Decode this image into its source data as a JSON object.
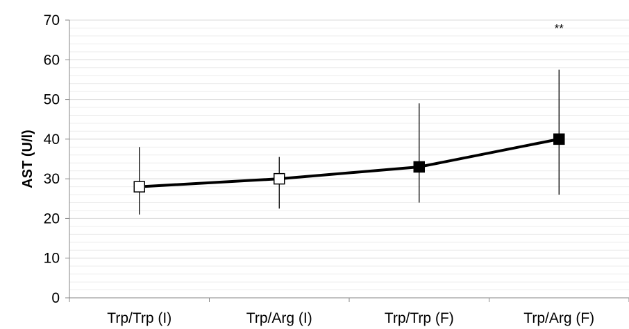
{
  "chart_data": {
    "type": "line",
    "categories": [
      "Trp/Trp (I)",
      "Trp/Arg (I)",
      "Trp/Trp (F)",
      "Trp/Arg (F)"
    ],
    "series": [
      {
        "values": [
          28,
          30,
          33,
          40
        ],
        "error_low": [
          21,
          22.5,
          24,
          26
        ],
        "error_high": [
          38,
          35.5,
          49,
          57.5
        ],
        "marker_fill": [
          "#ffffff",
          "#ffffff",
          "#000000",
          "#000000"
        ]
      }
    ],
    "ylabel": "AST (U/l)",
    "xlabel": "",
    "ylim": [
      0,
      70
    ],
    "yticks": [
      0,
      10,
      20,
      30,
      40,
      50,
      60,
      70
    ],
    "y_tick_labels": [
      "0",
      "10",
      "20",
      "30",
      "40",
      "50",
      "60",
      "70"
    ],
    "annotations": [
      {
        "category_index": 3,
        "text": "**",
        "y": 68
      }
    ],
    "grid": true,
    "colors": {
      "line": "#000000",
      "grid": "#d9d9d9",
      "axis": "#868686"
    }
  }
}
